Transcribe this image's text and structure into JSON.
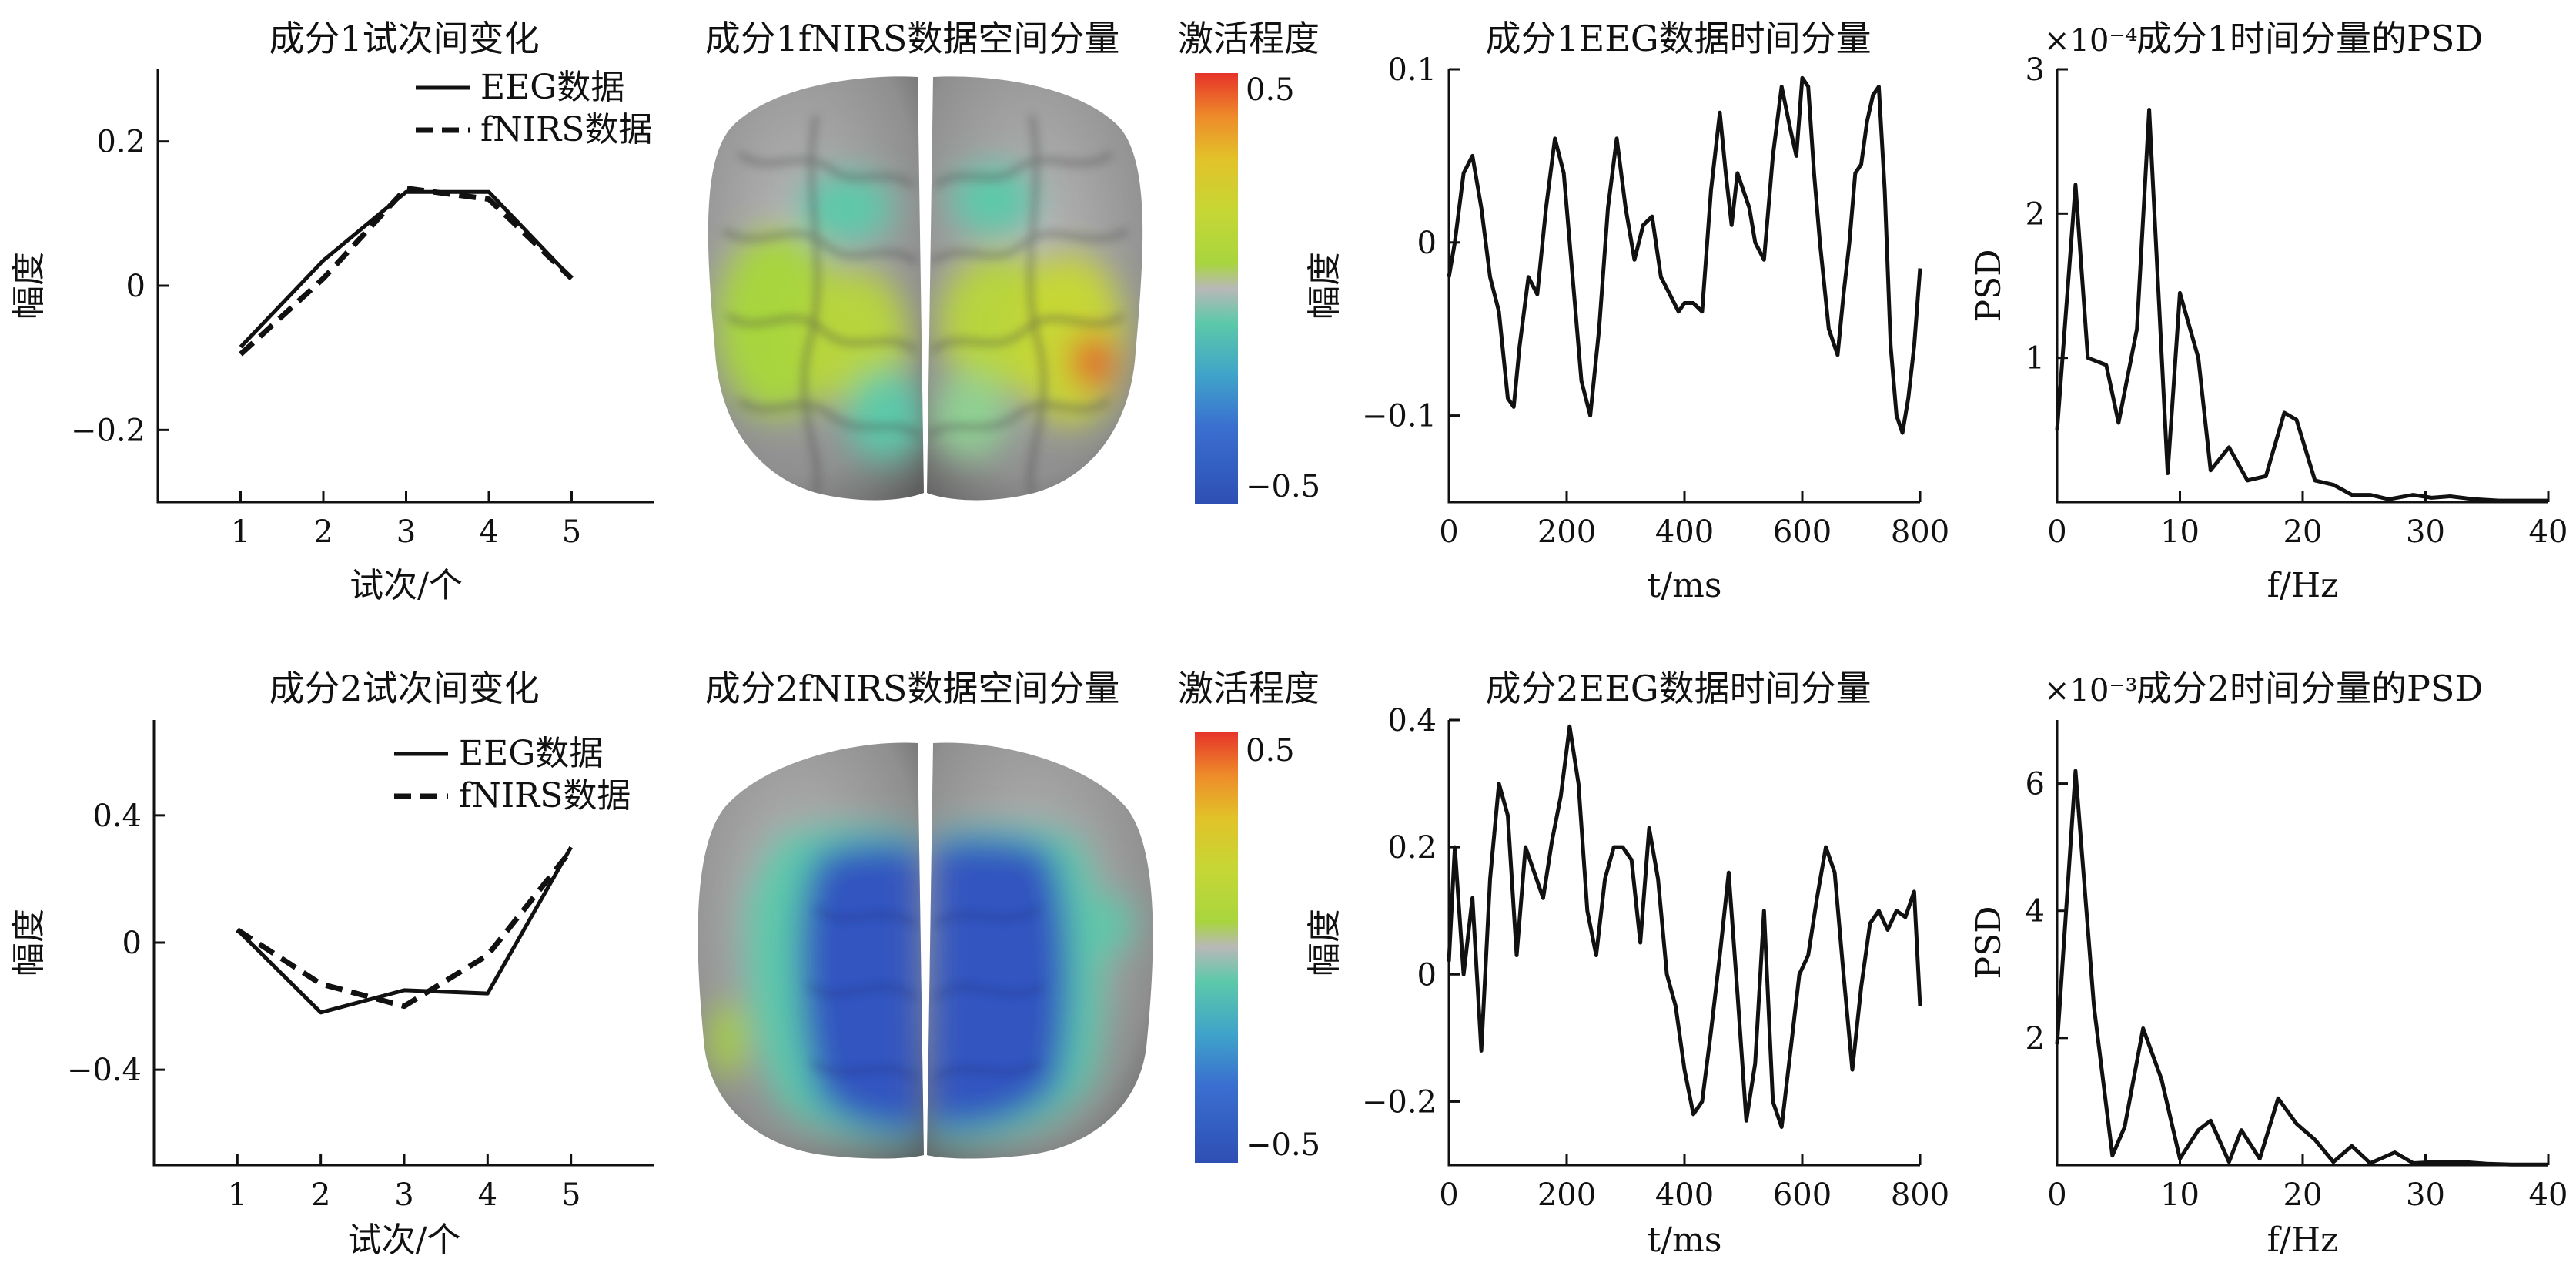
{
  "chart_data": [
    {
      "id": "p1",
      "type": "line",
      "title": "成分1试次间变化",
      "xlabel": "试次/个",
      "ylabel": "幅度",
      "xlim": [
        0,
        6
      ],
      "ylim": [
        -0.3,
        0.3
      ],
      "xticks": [
        1,
        2,
        3,
        4,
        5
      ],
      "yticks": [
        -0.2,
        0,
        0.2
      ],
      "ytick_labels": [
        "−0.2",
        "0",
        "0.2"
      ],
      "legend_position": "top-right",
      "series": [
        {
          "name": "EEG数据",
          "style": "solid",
          "x": [
            1,
            2,
            3,
            4,
            5
          ],
          "y": [
            -0.085,
            0.035,
            0.13,
            0.13,
            0.01
          ]
        },
        {
          "name": "fNIRS数据",
          "style": "dashed",
          "x": [
            1,
            2,
            3,
            4,
            5
          ],
          "y": [
            -0.095,
            0.01,
            0.135,
            0.12,
            0.01
          ]
        }
      ]
    },
    {
      "id": "p2",
      "type": "line",
      "title": "成分1EEG数据时间分量",
      "xlabel": "t/ms",
      "ylabel": "幅度",
      "xlim": [
        0,
        800
      ],
      "ylim": [
        -0.15,
        0.1
      ],
      "xticks": [
        0,
        200,
        400,
        600,
        800
      ],
      "yticks": [
        -0.1,
        0,
        0.1
      ],
      "ytick_labels": [
        "−0.1",
        "0",
        "0.1"
      ],
      "series": [
        {
          "style": "solid",
          "x": [
            0,
            10,
            25,
            40,
            55,
            70,
            85,
            100,
            110,
            120,
            135,
            150,
            165,
            180,
            195,
            210,
            225,
            240,
            255,
            270,
            285,
            300,
            315,
            330,
            345,
            360,
            375,
            390,
            400,
            415,
            430,
            445,
            460,
            470,
            480,
            490,
            500,
            510,
            520,
            535,
            550,
            565,
            580,
            590,
            600,
            610,
            620,
            630,
            645,
            660,
            670,
            680,
            690,
            700,
            710,
            720,
            730,
            740,
            750,
            760,
            770,
            780,
            790,
            800
          ],
          "y": [
            -0.02,
            0,
            0.04,
            0.05,
            0.02,
            -0.02,
            -0.04,
            -0.09,
            -0.095,
            -0.06,
            -0.02,
            -0.03,
            0.02,
            0.06,
            0.04,
            -0.02,
            -0.08,
            -0.1,
            -0.05,
            0.02,
            0.06,
            0.02,
            -0.01,
            0.01,
            0.015,
            -0.02,
            -0.03,
            -0.04,
            -0.035,
            -0.035,
            -0.04,
            0.03,
            0.075,
            0.04,
            0.01,
            0.04,
            0.03,
            0.02,
            0.0,
            -0.01,
            0.05,
            0.09,
            0.065,
            0.05,
            0.095,
            0.09,
            0.04,
            0.0,
            -0.05,
            -0.065,
            -0.03,
            0.0,
            0.04,
            0.045,
            0.07,
            0.085,
            0.09,
            0.03,
            -0.06,
            -0.1,
            -0.11,
            -0.09,
            -0.06,
            -0.015
          ]
        }
      ]
    },
    {
      "id": "p3",
      "type": "line",
      "title": "成分1时间分量的PSD",
      "xlabel": "f/Hz",
      "ylabel": "PSD",
      "scale_label": "×10⁻⁴",
      "xlim": [
        0,
        40
      ],
      "ylim": [
        0,
        3
      ],
      "xticks": [
        0,
        10,
        20,
        30,
        40
      ],
      "yticks": [
        1,
        2,
        3
      ],
      "series": [
        {
          "style": "solid",
          "x": [
            0,
            1.5,
            2.5,
            4,
            5,
            6.5,
            7.5,
            9,
            10,
            11.5,
            12.5,
            14,
            15.5,
            17,
            18.5,
            19.5,
            21,
            22.5,
            24,
            25.5,
            27,
            29,
            30.5,
            32,
            34,
            36,
            38,
            40
          ],
          "y": [
            0.5,
            2.2,
            1.0,
            0.95,
            0.55,
            1.2,
            2.72,
            0.2,
            1.45,
            1.0,
            0.22,
            0.38,
            0.15,
            0.18,
            0.62,
            0.57,
            0.15,
            0.12,
            0.05,
            0.05,
            0.02,
            0.05,
            0.03,
            0.04,
            0.02,
            0.01,
            0.01,
            0.01
          ]
        }
      ]
    },
    {
      "id": "p4",
      "type": "line",
      "title": "成分2试次间变化",
      "xlabel": "试次/个",
      "ylabel": "幅度",
      "xlim": [
        0,
        6
      ],
      "ylim": [
        -0.7,
        0.7
      ],
      "xticks": [
        1,
        2,
        3,
        4,
        5
      ],
      "yticks": [
        -0.4,
        0,
        0.4
      ],
      "ytick_labels": [
        "−0.4",
        "0",
        "0.4"
      ],
      "legend_position": "top-right",
      "series": [
        {
          "name": "EEG数据",
          "style": "solid",
          "x": [
            1,
            2,
            3,
            4,
            5
          ],
          "y": [
            0.04,
            -0.22,
            -0.15,
            -0.16,
            0.3
          ]
        },
        {
          "name": "fNIRS数据",
          "style": "dashed",
          "x": [
            1,
            2,
            3,
            4,
            5
          ],
          "y": [
            0.04,
            -0.13,
            -0.2,
            -0.04,
            0.29
          ]
        }
      ]
    },
    {
      "id": "p5",
      "type": "line",
      "title": "成分2EEG数据时间分量",
      "xlabel": "t/ms",
      "ylabel": "幅度",
      "xlim": [
        0,
        800
      ],
      "ylim": [
        -0.3,
        0.4
      ],
      "xticks": [
        0,
        200,
        400,
        600,
        800
      ],
      "yticks": [
        -0.2,
        0,
        0.2,
        0.4
      ],
      "ytick_labels": [
        "−0.2",
        "0",
        "0.2",
        "0.4"
      ],
      "series": [
        {
          "style": "solid",
          "x": [
            0,
            10,
            25,
            40,
            55,
            70,
            85,
            100,
            115,
            130,
            145,
            160,
            175,
            190,
            205,
            220,
            235,
            250,
            265,
            280,
            295,
            310,
            325,
            340,
            355,
            370,
            385,
            400,
            415,
            430,
            445,
            460,
            475,
            490,
            505,
            520,
            535,
            550,
            565,
            580,
            595,
            610,
            625,
            640,
            655,
            670,
            685,
            700,
            715,
            730,
            745,
            760,
            775,
            790,
            800
          ],
          "y": [
            0.02,
            0.2,
            0.0,
            0.12,
            -0.12,
            0.15,
            0.3,
            0.25,
            0.03,
            0.2,
            0.16,
            0.12,
            0.21,
            0.28,
            0.39,
            0.3,
            0.1,
            0.03,
            0.15,
            0.2,
            0.2,
            0.18,
            0.05,
            0.23,
            0.15,
            0.0,
            -0.05,
            -0.15,
            -0.22,
            -0.2,
            -0.09,
            0.03,
            0.16,
            -0.03,
            -0.23,
            -0.14,
            0.1,
            -0.2,
            -0.24,
            -0.12,
            0.0,
            0.03,
            0.12,
            0.2,
            0.16,
            0.0,
            -0.15,
            -0.02,
            0.08,
            0.1,
            0.07,
            0.1,
            0.09,
            0.13,
            -0.05
          ]
        }
      ]
    },
    {
      "id": "p6",
      "type": "line",
      "title": "成分2时间分量的PSD",
      "xlabel": "f/Hz",
      "ylabel": "PSD",
      "scale_label": "×10⁻³",
      "xlim": [
        0,
        40
      ],
      "ylim": [
        0,
        7
      ],
      "xticks": [
        0,
        10,
        20,
        30,
        40
      ],
      "yticks": [
        2,
        4,
        6
      ],
      "series": [
        {
          "style": "solid",
          "x": [
            0,
            1.5,
            3,
            4.5,
            5.5,
            7,
            8.5,
            10,
            11.5,
            12.5,
            14,
            15,
            16.5,
            18,
            19.5,
            21,
            22.5,
            24,
            25.5,
            27.5,
            29,
            31,
            33,
            35,
            37,
            40
          ],
          "y": [
            1.9,
            6.2,
            2.5,
            0.15,
            0.6,
            2.15,
            1.35,
            0.1,
            0.55,
            0.7,
            0.05,
            0.55,
            0.1,
            1.05,
            0.65,
            0.4,
            0.05,
            0.3,
            0.03,
            0.2,
            0.03,
            0.05,
            0.05,
            0.02,
            0.01,
            0.01
          ]
        }
      ]
    }
  ],
  "brain_panels": [
    {
      "id": "b1",
      "title": "成分1fNIRS数据空间分量",
      "colorbar_label": "激活程度",
      "colorbar_max": "0.5",
      "colorbar_min": "−0.5",
      "activation": "mixed"
    },
    {
      "id": "b2",
      "title": "成分2fNIRS数据空间分量",
      "colorbar_label": "激活程度",
      "colorbar_max": "0.5",
      "colorbar_min": "−0.5",
      "activation": "negative"
    }
  ],
  "colors": {
    "colormap": [
      "#2e4fb4",
      "#3a6fd0",
      "#3fa4c9",
      "#5cc9a9",
      "#8fd093",
      "#b8b8b8",
      "#a8d53e",
      "#c6d735",
      "#e2c229",
      "#ee8a2a",
      "#e6332a"
    ]
  }
}
